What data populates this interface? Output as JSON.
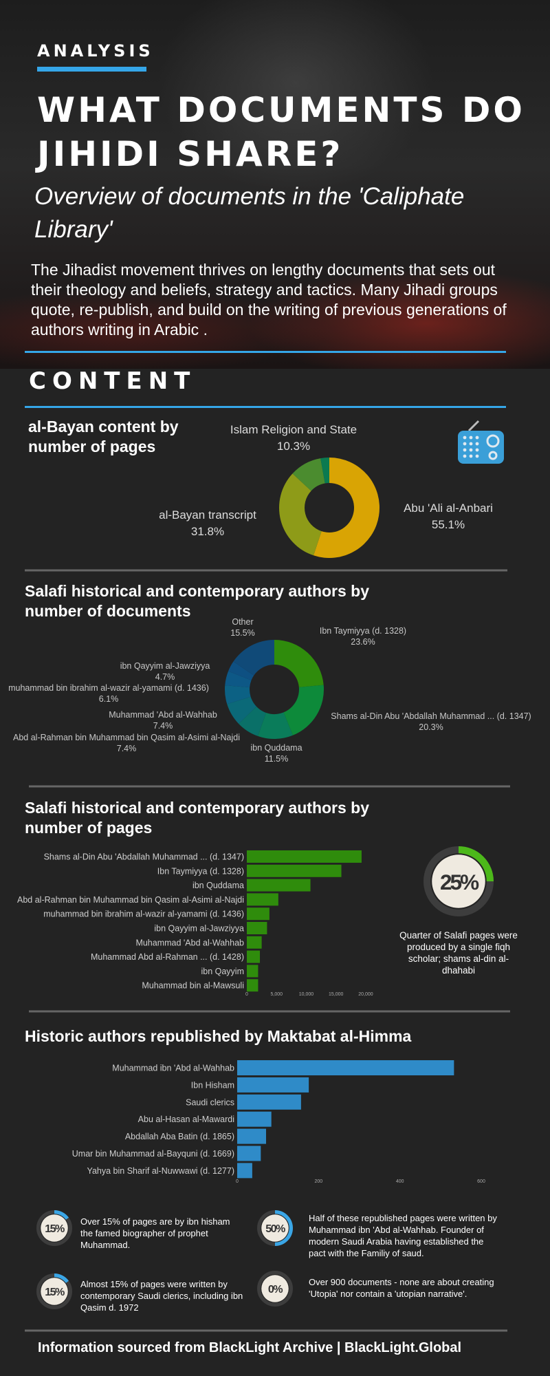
{
  "header": {
    "kicker": "ANALYSIS",
    "title": "WHAT DOCUMENTS DO JIHIDI SHARE?",
    "subtitle": "Overview of documents in the 'Caliphate Library'",
    "intro": "The Jihadist movement thrives on lengthy documents that sets out their theology and beliefs, strategy and tactics. Many Jihadi groups quote, re-publish, and build on the writing of previous generations of authors writing in Arabic ."
  },
  "content_heading": "CONTENT",
  "chart_data": [
    {
      "type": "donut",
      "title": "al-Bayan content by number of pages",
      "categories": [
        "Abu 'Ali al-Anbari",
        "al-Bayan transcript",
        "Islam Religion and State",
        null
      ],
      "values": [
        55.1,
        31.8,
        10.3,
        2.8
      ],
      "value_labels": [
        "55.1%",
        "31.8%",
        "10.3%",
        null
      ],
      "colors": [
        "#d9a404",
        "#8e9b18",
        "#4b8c2f",
        "#0b7a50"
      ]
    },
    {
      "type": "donut",
      "title": "Salafi historical and contemporary authors by number of documents",
      "categories": [
        "Ibn Taymiyya (d. 1328)",
        "Shams al-Din Abu 'Abdallah Muhammad ... (d. 1347)",
        "ibn Quddama",
        "Abd al-Rahman bin Muhammad bin Qasim al-Asimi al-Najdi",
        "Muhammad 'Abd al-Wahhab",
        "muhammad bin ibrahim al-wazir al-yamami (d. 1436)",
        "ibn Qayyim al-Jawziyya",
        null,
        "Other"
      ],
      "values": [
        23.6,
        20.3,
        11.5,
        7.4,
        7.4,
        6.1,
        4.7,
        3.5,
        15.5
      ],
      "value_labels": [
        "23.6%",
        "20.3%",
        "11.5%",
        "7.4%",
        "7.4%",
        "6.1%",
        "4.7%",
        null,
        "15.5%"
      ],
      "colors": [
        "#2f8c0c",
        "#0d8a3a",
        "#0a7c5a",
        "#0a7068",
        "#0b6978",
        "#0c6184",
        "#0d5886",
        "#0e5082",
        "#104a78"
      ]
    },
    {
      "type": "hbar",
      "title": "Salafi historical and contemporary authors by number of pages",
      "categories": [
        "Shams al-Din Abu 'Abdallah Muhammad ... (d. 1347)",
        "Ibn Taymiyya (d. 1328)",
        "ibn Quddama",
        "Abd al-Rahman bin Muhammad bin Qasim al-Asimi al-Najdi",
        "muhammad bin ibrahim al-wazir al-yamami (d. 1436)",
        "ibn Qayyim al-Jawziyya",
        "Muhammad 'Abd al-Wahhab",
        "Muhammad Abd al-Rahman ... (d. 1428)",
        "ibn Qayyim",
        "Muhammad bin al-Mawsuli"
      ],
      "values": [
        19300,
        15900,
        10700,
        5300,
        3800,
        3400,
        2500,
        2200,
        1900,
        1900
      ],
      "color": "#2f8c0c",
      "xlim": [
        0,
        20000
      ],
      "xticks": [
        0,
        {
          "value": 5000,
          "label": "5,000"
        },
        {
          "value": 10000,
          "label": "10,000"
        },
        {
          "value": 15000,
          "label": "15,000"
        },
        {
          "value": 20000,
          "label": "20,000"
        }
      ]
    },
    {
      "type": "hbar",
      "title": "Historic authors republished by Maktabat al-Himma",
      "categories": [
        "Muhammad ibn 'Abd al-Wahhab",
        "Ibn Hisham",
        "Saudi clerics",
        "Abu al-Hasan al-Mawardi",
        "Abdallah Aba Batin (d. 1865)",
        "Umar bin Muhammad al-Bayquni (d. 1669)",
        "Yahya bin Sharif al-Nuwwawi (d. 1277)"
      ],
      "values": [
        533,
        176,
        157,
        84,
        71,
        58,
        37
      ],
      "color": "#2f8bc8",
      "xlim": [
        0,
        600
      ],
      "xticks": [
        0,
        200,
        400,
        600
      ]
    }
  ],
  "highlight": {
    "value": 25,
    "label": "25%",
    "color": "#4cb81a",
    "text": "Quarter of Salafi pages were produced by a single fiqh scholar; shams al-din al-dhahabi"
  },
  "stats": [
    {
      "value": 15,
      "label": "15%",
      "color": "#3aa6e6",
      "text": "Over 15% of pages are by ibn hisham the famed biographer of prophet Muhammad."
    },
    {
      "value": 50,
      "label": "50%",
      "color": "#3aa6e6",
      "text": "Half of these republished pages were written by Muhammad ibn 'Abd al-Wahhab. Founder of modern Saudi Arabia having established the pact with the Familiy of saud."
    },
    {
      "value": 15,
      "label": "15%",
      "color": "#3aa6e6",
      "text": "Almost 15% of pages were written by contemporary Saudi clerics, including ibn Qasim d. 1972"
    },
    {
      "value": 0,
      "label": "0%",
      "color": "#3aa6e6",
      "text": "Over 900 documents - none are about creating 'Utopia' nor contain a 'utopian narrative'."
    }
  ],
  "footer": "Information sourced from BlackLight Archive |  BlackLight.Global"
}
